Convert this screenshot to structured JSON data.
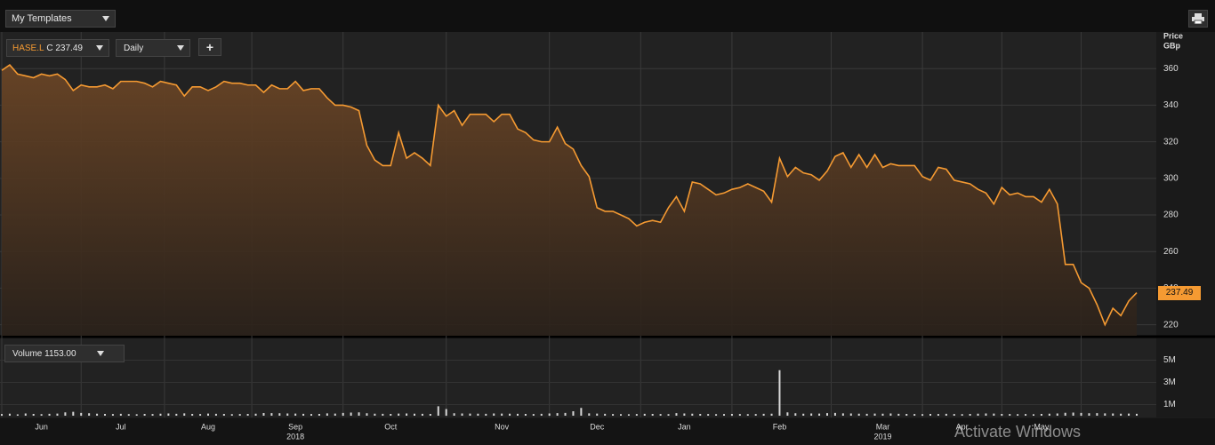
{
  "toolbar": {
    "templates": "My Templates"
  },
  "chart_data": {
    "type": "line",
    "ric": "HASE.L",
    "close_label": "C 237.49",
    "interval": "Daily",
    "add_button": "+",
    "price_label": "Price",
    "unit_label": "GBp",
    "last_value_label": "237.49",
    "categories": [
      null,
      null,
      null,
      null,
      null,
      "Jun",
      null,
      null,
      null,
      null,
      null,
      null,
      null,
      null,
      null,
      "Jul",
      null,
      null,
      null,
      null,
      null,
      null,
      null,
      null,
      null,
      null,
      "Aug",
      null,
      null,
      null,
      null,
      null,
      null,
      null,
      null,
      null,
      null,
      "Sep",
      null,
      null,
      null,
      null,
      null,
      null,
      null,
      null,
      null,
      null,
      null,
      "Oct",
      null,
      null,
      null,
      null,
      null,
      null,
      null,
      null,
      null,
      null,
      null,
      null,
      null,
      "Nov",
      null,
      null,
      null,
      null,
      null,
      null,
      null,
      null,
      null,
      null,
      null,
      "Dec",
      null,
      null,
      null,
      null,
      null,
      null,
      null,
      null,
      null,
      null,
      "Jan",
      null,
      null,
      null,
      null,
      null,
      null,
      null,
      null,
      null,
      null,
      null,
      "Feb",
      null,
      null,
      null,
      null,
      null,
      null,
      null,
      null,
      null,
      null,
      null,
      null,
      "Mar",
      null,
      null,
      null,
      null,
      null,
      null,
      null,
      null,
      null,
      "Apr",
      null,
      null,
      null,
      null,
      null,
      null,
      null,
      null,
      null,
      "May",
      null,
      null,
      null,
      null,
      null,
      null,
      null,
      null,
      null,
      null,
      null,
      null
    ],
    "year_labels": [
      null,
      null,
      null,
      null,
      null,
      null,
      null,
      null,
      null,
      null,
      null,
      null,
      null,
      null,
      null,
      null,
      null,
      null,
      null,
      null,
      null,
      null,
      null,
      null,
      null,
      null,
      null,
      null,
      null,
      null,
      null,
      null,
      null,
      null,
      null,
      null,
      null,
      "2018",
      null,
      null,
      null,
      null,
      null,
      null,
      null,
      null,
      null,
      null,
      null,
      null,
      null,
      null,
      null,
      null,
      null,
      null,
      null,
      null,
      null,
      null,
      null,
      null,
      null,
      null,
      null,
      null,
      null,
      null,
      null,
      null,
      null,
      null,
      null,
      null,
      null,
      null,
      null,
      null,
      null,
      null,
      null,
      null,
      null,
      null,
      null,
      null,
      null,
      null,
      null,
      null,
      null,
      null,
      null,
      null,
      null,
      null,
      null,
      null,
      null,
      null,
      null,
      null,
      null,
      null,
      null,
      null,
      null,
      null,
      null,
      null,
      null,
      "2019",
      null,
      null,
      null,
      null,
      null,
      null,
      null,
      null,
      null,
      null,
      null,
      null,
      null,
      null,
      null,
      null,
      null,
      null,
      null,
      null,
      null,
      null,
      null,
      null,
      null,
      null,
      null,
      null,
      null,
      null,
      null,
      null
    ],
    "series": [
      {
        "name": "HASE.L",
        "color": "#f59a32",
        "values": [
          359,
          362,
          357,
          356,
          355,
          357,
          356,
          357,
          354,
          348,
          351,
          350,
          350,
          351,
          349,
          353,
          353,
          353,
          352,
          350,
          353,
          352,
          351,
          345,
          350,
          350,
          348,
          350,
          353,
          352,
          352,
          351,
          351,
          347,
          351,
          349,
          349,
          353,
          348,
          349,
          349,
          344,
          340,
          340,
          339,
          337,
          318,
          310,
          307,
          307,
          325,
          311,
          314,
          311,
          307,
          340,
          334,
          337,
          329,
          335,
          335,
          335,
          331,
          335,
          335,
          327,
          325,
          321,
          320,
          320,
          328,
          319,
          316,
          307,
          301,
          284,
          282,
          282,
          280,
          278,
          274,
          276,
          277,
          276,
          284,
          290,
          282,
          298,
          297,
          294,
          291,
          292,
          294,
          295,
          297,
          295,
          293,
          287,
          311,
          301,
          306,
          303,
          302,
          299,
          304,
          312,
          314,
          306,
          313,
          306,
          313,
          306,
          308,
          307,
          307,
          307,
          301,
          299,
          306,
          305,
          299,
          298,
          297,
          294,
          292,
          286,
          295,
          291,
          292,
          290,
          290,
          287,
          294,
          286,
          253,
          253,
          243,
          240,
          231,
          220,
          229,
          225,
          233,
          237.49
        ]
      }
    ],
    "ylim": [
      214,
      380
    ],
    "yticks": [
      220,
      240,
      260,
      280,
      300,
      320,
      340,
      360
    ],
    "grid": true,
    "volume": {
      "label": "Volume",
      "value_label": "1153.00",
      "color": "#d8d8d8",
      "ylim": [
        0,
        6640000
      ],
      "yticks": [
        {
          "value": 1000000,
          "label": "1M"
        },
        {
          "value": 3000000,
          "label": "3M"
        },
        {
          "value": 5000000,
          "label": "5M"
        }
      ],
      "values": [
        150000,
        180000,
        120000,
        200000,
        160000,
        140000,
        170000,
        190000,
        300000,
        350000,
        250000,
        220000,
        180000,
        160000,
        150000,
        170000,
        140000,
        130000,
        160000,
        150000,
        180000,
        200000,
        170000,
        210000,
        160000,
        150000,
        190000,
        170000,
        160000,
        140000,
        150000,
        160000,
        180000,
        240000,
        230000,
        220000,
        200000,
        190000,
        170000,
        150000,
        160000,
        210000,
        190000,
        250000,
        280000,
        300000,
        220000,
        180000,
        170000,
        160000,
        190000,
        200000,
        180000,
        170000,
        160000,
        850000,
        600000,
        220000,
        200000,
        190000,
        180000,
        170000,
        200000,
        190000,
        180000,
        170000,
        160000,
        150000,
        170000,
        200000,
        230000,
        250000,
        400000,
        700000,
        210000,
        190000,
        170000,
        150000,
        140000,
        130000,
        150000,
        170000,
        160000,
        150000,
        140000,
        230000,
        200000,
        180000,
        160000,
        150000,
        140000,
        150000,
        160000,
        150000,
        140000,
        150000,
        170000,
        180000,
        4100000,
        300000,
        220000,
        180000,
        200000,
        190000,
        230000,
        250000,
        210000,
        200000,
        180000,
        170000,
        190000,
        180000,
        200000,
        170000,
        160000,
        150000,
        140000,
        160000,
        150000,
        170000,
        150000,
        140000,
        160000,
        180000,
        200000,
        190000,
        160000,
        150000,
        140000,
        150000,
        130000,
        160000,
        180000,
        200000,
        260000,
        280000,
        250000,
        220000,
        230000,
        210000,
        200000,
        180000,
        190000,
        170000
      ]
    }
  },
  "watermark": "Activate Windows"
}
